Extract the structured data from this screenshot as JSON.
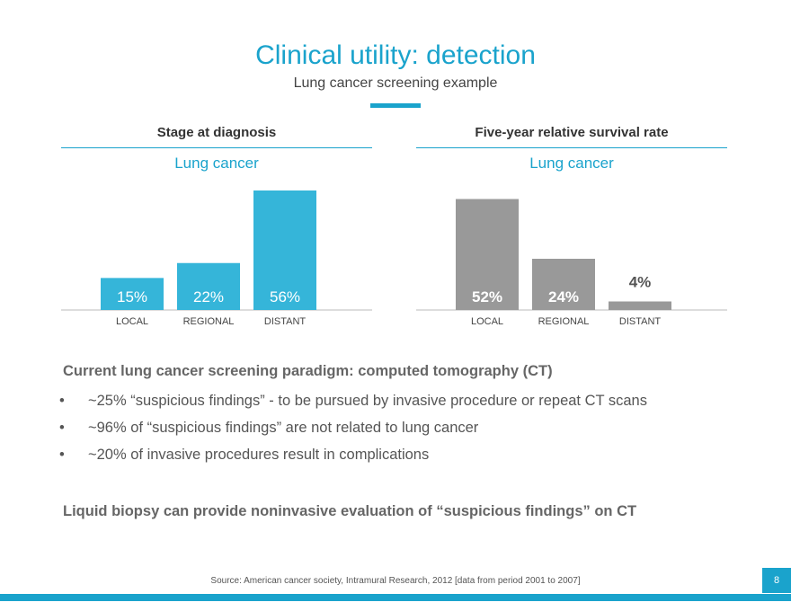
{
  "slide": {
    "title": "Clinical utility: detection",
    "subtitle": "Lung cancer screening example",
    "page_number": "8",
    "accent_color": "#1aa3cc",
    "source": "Source: American cancer society, Intramural Research, 2012 [data from period 2001 to 2007]"
  },
  "panels": [
    {
      "heading": "Stage at diagnosis",
      "subheading": "Lung cancer"
    },
    {
      "heading": "Five-year relative survival rate",
      "subheading": "Lung cancer"
    }
  ],
  "chart_data": [
    {
      "type": "bar",
      "title": "Stage at diagnosis",
      "subtitle": "Lung cancer",
      "categories": [
        "LOCAL",
        "REGIONAL",
        "DISTANT"
      ],
      "values": [
        15,
        22,
        56
      ],
      "labels": [
        "15%",
        "22%",
        "56%"
      ],
      "unit": "%",
      "color": "#35b5d9",
      "label_color": "#ffffff"
    },
    {
      "type": "bar",
      "title": "Five-year relative survival rate",
      "subtitle": "Lung cancer",
      "categories": [
        "LOCAL",
        "REGIONAL",
        "DISTANT"
      ],
      "values": [
        52,
        24,
        4
      ],
      "labels": [
        "52%",
        "24%",
        "4%"
      ],
      "unit": "%",
      "color": "#999999",
      "label_color": "#ffffff"
    }
  ],
  "body": {
    "heading": "Current lung cancer screening paradigm: computed tomography (CT)",
    "bullet_glyph": "•",
    "bullets": [
      "~25% “suspicious findings” - to be pursued by invasive procedure or repeat CT scans",
      "~96% of “suspicious findings” are not related to lung cancer",
      "~20% of invasive procedures result in complications"
    ],
    "conclusion": "Liquid biopsy can provide noninvasive evaluation of “suspicious findings” on CT"
  }
}
